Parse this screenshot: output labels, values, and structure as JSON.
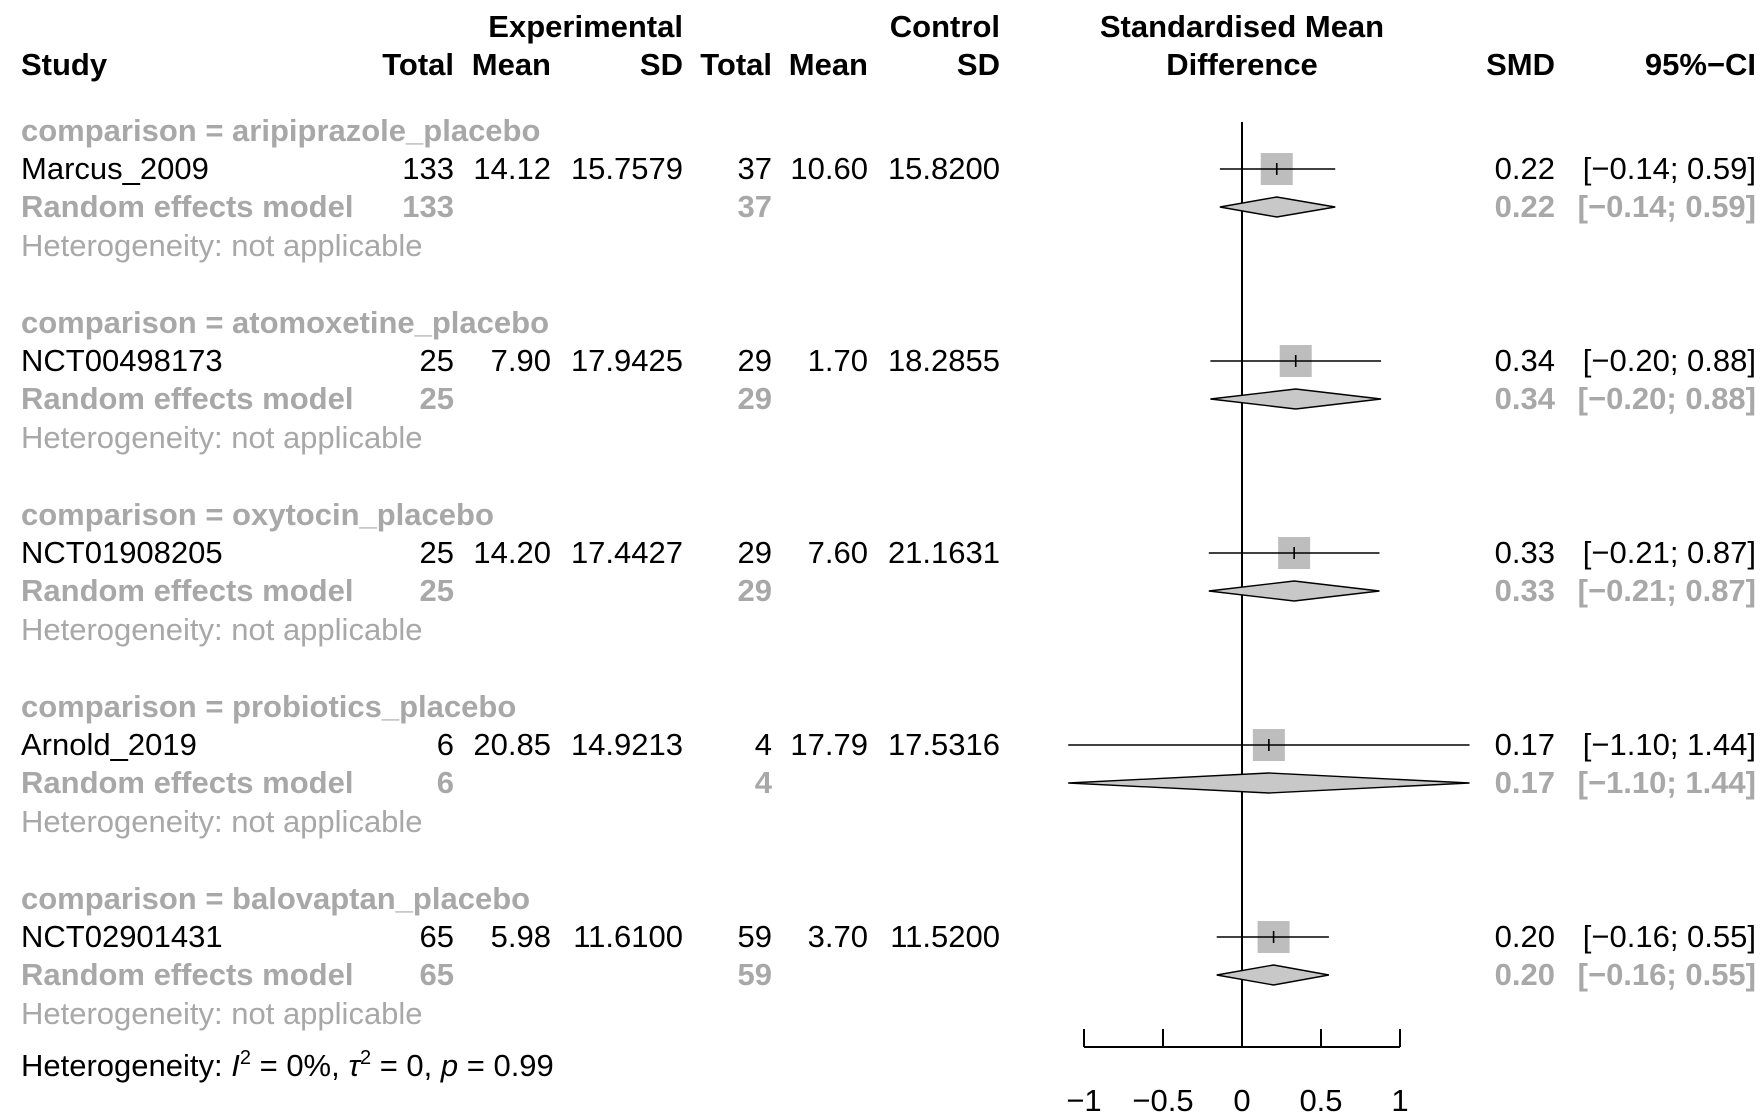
{
  "chart_data": {
    "type": "forest",
    "headers": {
      "study": "Study",
      "exp_group": "Experimental",
      "ctrl_group": "Control",
      "total": "Total",
      "mean": "Mean",
      "sd": "SD",
      "plot_title_1": "Standardised Mean",
      "plot_title_2": "Difference",
      "smd": "SMD",
      "ci": "95%−CI"
    },
    "random_label": "Random effects model",
    "heterogeneity_na": "Heterogeneity: not applicable",
    "groups": [
      {
        "label": "comparison = aripiprazole_placebo",
        "study": "Marcus_2009",
        "exp_total": "133",
        "exp_mean": "14.12",
        "exp_sd": "15.7579",
        "ctrl_total": "37",
        "ctrl_mean": "10.60",
        "ctrl_sd": "15.8200",
        "smd": 0.22,
        "lower": -0.14,
        "upper": 0.59,
        "smd_text": "0.22",
        "ci_text": "[−0.14; 0.59]"
      },
      {
        "label": "comparison = atomoxetine_placebo",
        "study": "NCT00498173",
        "exp_total": "25",
        "exp_mean": "7.90",
        "exp_sd": "17.9425",
        "ctrl_total": "29",
        "ctrl_mean": "1.70",
        "ctrl_sd": "18.2855",
        "smd": 0.34,
        "lower": -0.2,
        "upper": 0.88,
        "smd_text": "0.34",
        "ci_text": "[−0.20; 0.88]"
      },
      {
        "label": "comparison = oxytocin_placebo",
        "study": "NCT01908205",
        "exp_total": "25",
        "exp_mean": "14.20",
        "exp_sd": "17.4427",
        "ctrl_total": "29",
        "ctrl_mean": "7.60",
        "ctrl_sd": "21.1631",
        "smd": 0.33,
        "lower": -0.21,
        "upper": 0.87,
        "smd_text": "0.33",
        "ci_text": "[−0.21; 0.87]"
      },
      {
        "label": "comparison = probiotics_placebo",
        "study": "Arnold_2019",
        "exp_total": "6",
        "exp_mean": "20.85",
        "exp_sd": "14.9213",
        "ctrl_total": "4",
        "ctrl_mean": "17.79",
        "ctrl_sd": "17.5316",
        "smd": 0.17,
        "lower": -1.1,
        "upper": 1.44,
        "smd_text": "0.17",
        "ci_text": "[−1.10; 1.44]"
      },
      {
        "label": "comparison = balovaptan_placebo",
        "study": "NCT02901431",
        "exp_total": "65",
        "exp_mean": "5.98",
        "exp_sd": "11.6100",
        "ctrl_total": "59",
        "ctrl_mean": "3.70",
        "ctrl_sd": "11.5200",
        "smd": 0.2,
        "lower": -0.16,
        "upper": 0.55,
        "smd_text": "0.20",
        "ci_text": "[−0.16; 0.55]"
      }
    ],
    "overall_heterogeneity": {
      "prefix": "Heterogeneity: ",
      "i2_symbol": "I",
      "i2_value": " = 0%, ",
      "tau_symbol": "τ",
      "tau_value": " = 0, ",
      "p_symbol": "p",
      "p_value": " = 0.99",
      "superscript": "2"
    },
    "x_axis": {
      "ticks": [
        -1,
        -0.5,
        0,
        0.5,
        1
      ],
      "tick_labels": [
        "−1",
        "−0.5",
        "0",
        "0.5",
        "1"
      ],
      "null_value": 0
    },
    "colors": {
      "text": "#000000",
      "secondary_text": "#a8a8a8",
      "box_fill": "#bdbdbd",
      "diamond_fill": "#c8c8c8"
    }
  }
}
